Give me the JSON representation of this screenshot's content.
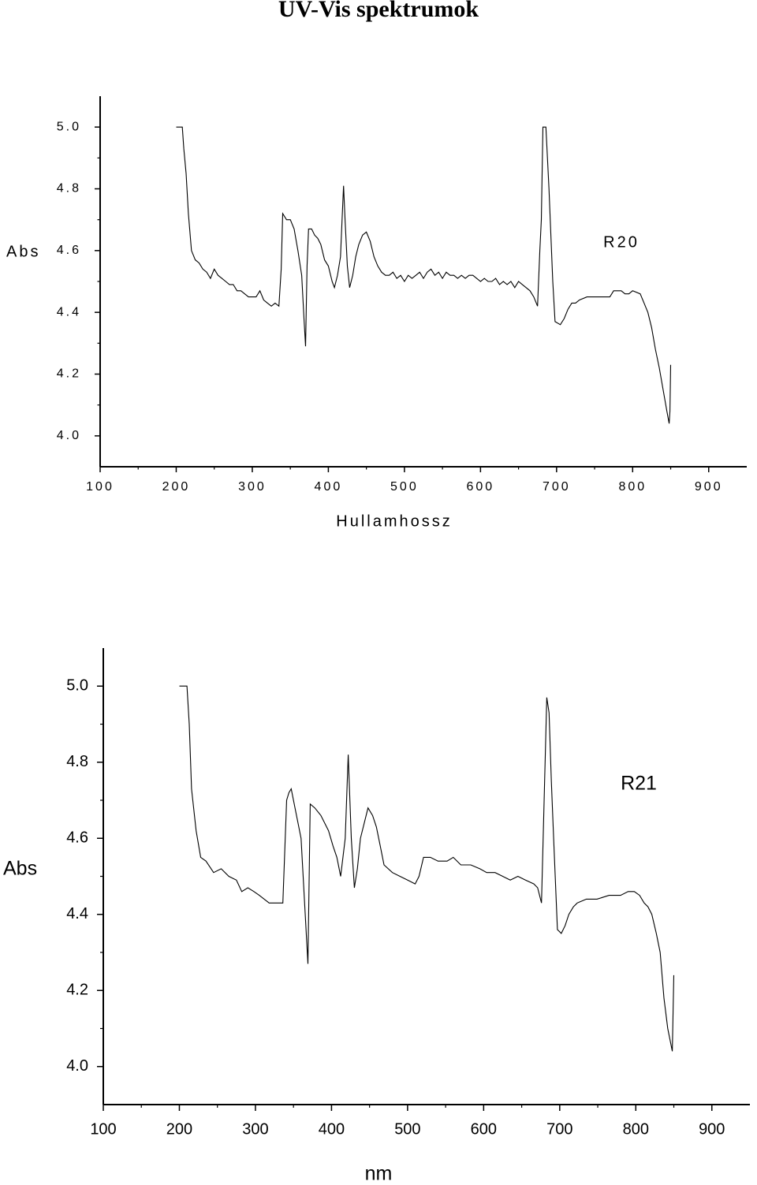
{
  "title": "UV-Vis spektrumok",
  "chart_data": [
    {
      "type": "line",
      "ylabel": "Abs",
      "xlabel": "Hullamhossz",
      "annotation": "R20",
      "color": "#000000",
      "xlim": [
        100,
        950
      ],
      "ylim": [
        3.9,
        5.1
      ],
      "xticks": [
        100,
        200,
        300,
        400,
        500,
        600,
        700,
        800,
        900
      ],
      "yticks": [
        {
          "value": 4,
          "label": "4.0"
        },
        {
          "value": 4.2,
          "label": "4.2"
        },
        {
          "value": 4.4,
          "label": "4.4"
        },
        {
          "value": 4.6,
          "label": "4.6"
        },
        {
          "value": 4.8,
          "label": "4.8"
        },
        {
          "value": 5,
          "label": "5.0"
        }
      ],
      "x": [
        200,
        208,
        210,
        213,
        216,
        220,
        225,
        230,
        235,
        240,
        245,
        250,
        255,
        260,
        265,
        270,
        275,
        280,
        285,
        290,
        295,
        300,
        305,
        310,
        315,
        320,
        325,
        330,
        335,
        338,
        340,
        345,
        350,
        355,
        360,
        365,
        368,
        370,
        372,
        374,
        378,
        382,
        386,
        390,
        395,
        400,
        405,
        408,
        412,
        416,
        418,
        420,
        422,
        425,
        428,
        432,
        436,
        440,
        445,
        450,
        455,
        460,
        465,
        470,
        475,
        480,
        485,
        490,
        495,
        500,
        505,
        510,
        515,
        520,
        525,
        530,
        535,
        540,
        545,
        550,
        555,
        560,
        565,
        570,
        575,
        580,
        585,
        590,
        595,
        600,
        605,
        610,
        615,
        620,
        625,
        630,
        635,
        640,
        645,
        650,
        655,
        660,
        665,
        670,
        675,
        678,
        680,
        682,
        686,
        690,
        695,
        698,
        705,
        710,
        715,
        720,
        725,
        730,
        740,
        750,
        760,
        770,
        775,
        780,
        785,
        790,
        795,
        800,
        810,
        815,
        820,
        825,
        830,
        835,
        840,
        845,
        848,
        849,
        850
      ],
      "values": [
        5.0,
        5.0,
        4.93,
        4.85,
        4.72,
        4.6,
        4.57,
        4.56,
        4.54,
        4.53,
        4.51,
        4.54,
        4.52,
        4.51,
        4.5,
        4.49,
        4.49,
        4.47,
        4.47,
        4.46,
        4.45,
        4.45,
        4.45,
        4.47,
        4.44,
        4.43,
        4.42,
        4.43,
        4.42,
        4.54,
        4.72,
        4.7,
        4.7,
        4.67,
        4.6,
        4.52,
        4.38,
        4.29,
        4.55,
        4.67,
        4.67,
        4.65,
        4.64,
        4.62,
        4.57,
        4.55,
        4.5,
        4.48,
        4.52,
        4.58,
        4.7,
        4.81,
        4.7,
        4.55,
        4.48,
        4.52,
        4.58,
        4.62,
        4.65,
        4.66,
        4.63,
        4.58,
        4.55,
        4.53,
        4.52,
        4.52,
        4.53,
        4.51,
        4.52,
        4.5,
        4.52,
        4.51,
        4.52,
        4.53,
        4.51,
        4.53,
        4.54,
        4.52,
        4.53,
        4.51,
        4.53,
        4.52,
        4.52,
        4.51,
        4.52,
        4.51,
        4.52,
        4.52,
        4.51,
        4.5,
        4.51,
        4.5,
        4.5,
        4.51,
        4.49,
        4.5,
        4.49,
        4.5,
        4.48,
        4.5,
        4.49,
        4.48,
        4.47,
        4.45,
        4.42,
        4.6,
        4.7,
        5.0,
        5.0,
        4.8,
        4.5,
        4.37,
        4.36,
        4.38,
        4.41,
        4.43,
        4.43,
        4.44,
        4.45,
        4.45,
        4.45,
        4.45,
        4.47,
        4.47,
        4.47,
        4.46,
        4.46,
        4.47,
        4.46,
        4.43,
        4.4,
        4.35,
        4.28,
        4.22,
        4.15,
        4.08,
        4.04,
        4.08,
        4.23
      ]
    },
    {
      "type": "line",
      "ylabel": "Abs",
      "xlabel": "nm",
      "annotation": "R21",
      "color": "#000000",
      "xlim": [
        100,
        950
      ],
      "ylim": [
        3.9,
        5.1
      ],
      "xticks": [
        100,
        200,
        300,
        400,
        500,
        600,
        700,
        800,
        900
      ],
      "yticks": [
        {
          "value": 4,
          "label": "4.0"
        },
        {
          "value": 4.2,
          "label": "4.2"
        },
        {
          "value": 4.4,
          "label": "4.4"
        },
        {
          "value": 4.6,
          "label": "4.6"
        },
        {
          "value": 4.8,
          "label": "4.8"
        },
        {
          "value": 5,
          "label": "5.0"
        }
      ],
      "x": [
        200,
        210,
        213,
        216,
        222,
        228,
        235,
        245,
        255,
        265,
        275,
        282,
        290,
        298,
        305,
        318,
        327,
        336,
        341,
        344,
        347,
        352,
        360,
        369,
        372,
        378,
        386,
        396,
        402,
        407,
        412,
        418,
        422,
        426,
        430,
        434,
        438,
        443,
        448,
        454,
        459,
        464,
        469,
        480,
        490,
        500,
        510,
        515,
        521,
        530,
        540,
        552,
        560,
        570,
        583,
        595,
        604,
        615,
        625,
        635,
        645,
        655,
        666,
        671,
        676,
        683,
        686,
        689,
        692,
        697,
        702,
        707,
        712,
        718,
        723,
        735,
        749,
        765,
        780,
        790,
        798,
        805,
        811,
        816,
        821,
        827,
        832,
        837,
        842,
        848,
        850
      ],
      "values": [
        5.0,
        5.0,
        4.9,
        4.73,
        4.62,
        4.55,
        4.54,
        4.51,
        4.52,
        4.5,
        4.49,
        4.46,
        4.47,
        4.46,
        4.45,
        4.43,
        4.43,
        4.43,
        4.7,
        4.72,
        4.73,
        4.68,
        4.6,
        4.27,
        4.69,
        4.68,
        4.66,
        4.62,
        4.58,
        4.55,
        4.5,
        4.6,
        4.82,
        4.6,
        4.47,
        4.52,
        4.6,
        4.64,
        4.68,
        4.66,
        4.63,
        4.58,
        4.53,
        4.51,
        4.5,
        4.49,
        4.48,
        4.5,
        4.55,
        4.55,
        4.54,
        4.54,
        4.55,
        4.53,
        4.53,
        4.52,
        4.51,
        4.51,
        4.5,
        4.49,
        4.5,
        4.49,
        4.48,
        4.47,
        4.43,
        4.97,
        4.93,
        4.75,
        4.6,
        4.36,
        4.35,
        4.37,
        4.4,
        4.42,
        4.43,
        4.44,
        4.44,
        4.45,
        4.45,
        4.46,
        4.46,
        4.45,
        4.43,
        4.42,
        4.4,
        4.35,
        4.3,
        4.18,
        4.1,
        4.04,
        4.24
      ]
    }
  ]
}
